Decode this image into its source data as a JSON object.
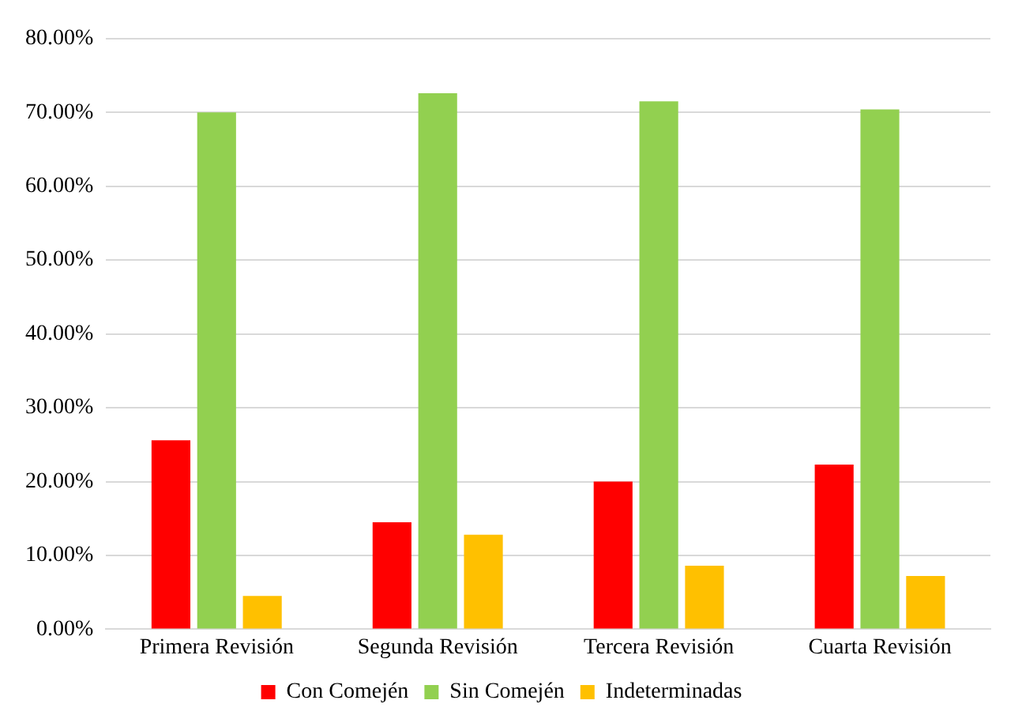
{
  "chart_data": {
    "type": "bar",
    "categories": [
      "Primera Revisión",
      "Segunda Revisión",
      "Tercera Revisión",
      "Cuarta Revisión"
    ],
    "series": [
      {
        "name": "Con Comején",
        "color": "#ff0000",
        "values": [
          25.6,
          14.5,
          20.0,
          22.3
        ]
      },
      {
        "name": "Sin Comején",
        "color": "#92d050",
        "values": [
          70.0,
          72.6,
          71.5,
          70.4
        ]
      },
      {
        "name": "Indeterminadas",
        "color": "#ffc000",
        "values": [
          4.5,
          12.8,
          8.6,
          7.2
        ]
      }
    ],
    "ylim": [
      0,
      80
    ],
    "yticks": [
      {
        "value": 0,
        "label": "0.00%"
      },
      {
        "value": 10,
        "label": "10.00%"
      },
      {
        "value": 20,
        "label": "20.00%"
      },
      {
        "value": 30,
        "label": "30.00%"
      },
      {
        "value": 40,
        "label": "40.00%"
      },
      {
        "value": 50,
        "label": "50.00%"
      },
      {
        "value": 60,
        "label": "60.00%"
      },
      {
        "value": 70,
        "label": "70.00%"
      },
      {
        "value": 80,
        "label": "80.00%"
      }
    ],
    "grid": "y",
    "legend": "bottom"
  }
}
